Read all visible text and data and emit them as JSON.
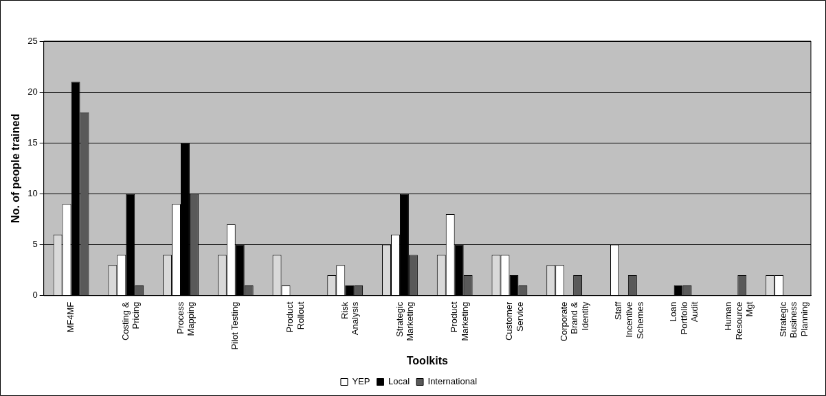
{
  "chart_data": {
    "type": "bar",
    "xlabel": "Toolkits",
    "ylabel": "No. of people trained",
    "categories": [
      "MF4MF",
      "Costing &\nPricing",
      "Process\nMapping",
      "Pilot Testing",
      "Product\nRollout",
      "Risk\nAnalysis",
      "Strategic\nMarketing",
      "Product\nMarketing",
      "Customer\nService",
      "Corporate\nBrand &\nIdentity",
      "Staff\nIncentive\nSchemes",
      "Loan\nPortfolio\nAudit",
      "Human\nResource\nMgt",
      "Strategic\nBusiness\nPlanning"
    ],
    "series": [
      {
        "color": "#d9d9d9",
        "values": [
          6,
          3,
          4,
          4,
          4,
          2,
          5,
          4,
          4,
          3,
          0,
          0,
          0,
          2
        ]
      },
      {
        "name": "YEP",
        "color": "#ffffff",
        "values": [
          9,
          4,
          9,
          7,
          1,
          3,
          6,
          8,
          4,
          3,
          5,
          0,
          0,
          2
        ]
      },
      {
        "name": "Local",
        "color": "#000000",
        "values": [
          21,
          10,
          15,
          5,
          0,
          1,
          10,
          5,
          2,
          0,
          0,
          1,
          0,
          0
        ]
      },
      {
        "name": "International",
        "color": "#595959",
        "values": [
          18,
          1,
          10,
          1,
          0,
          1,
          4,
          2,
          1,
          2,
          2,
          1,
          2,
          0
        ]
      }
    ],
    "ylim": [
      0,
      25
    ],
    "yticks": [
      0,
      5,
      10,
      15,
      20,
      25
    ],
    "grid": "y",
    "legend": "bottom"
  }
}
